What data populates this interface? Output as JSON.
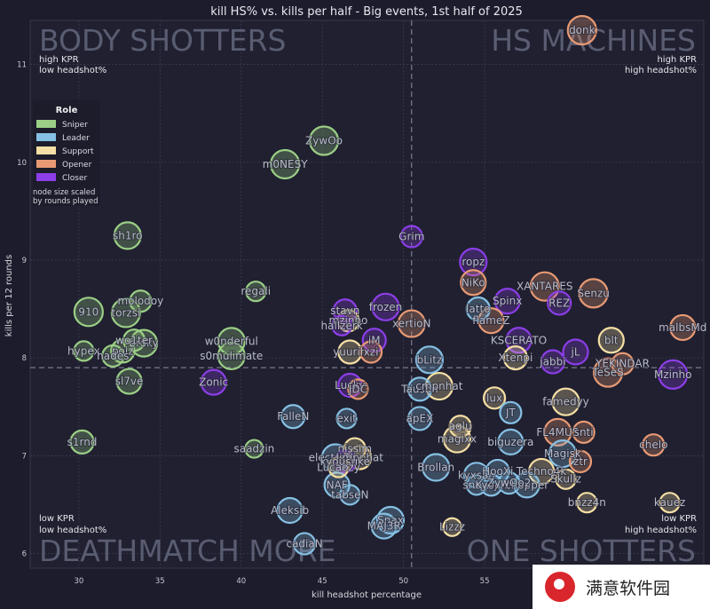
{
  "chart_data": {
    "type": "scatter",
    "title": "kill HS% vs. kills per half - Big events, 1st half of 2025",
    "xlabel": "kill headshot percentage",
    "ylabel": "kills per 12 rounds",
    "xlim": [
      27,
      68.5
    ],
    "ylim": [
      5.85,
      11.45
    ],
    "x_ticks": [
      30,
      35,
      40,
      45,
      50,
      55
    ],
    "y_ticks": [
      6,
      7,
      8,
      9,
      10,
      11
    ],
    "mean_x": 50.5,
    "mean_y": 7.9,
    "grid": true,
    "quadrants": {
      "top_left": {
        "title": "BODY SHOTTERS",
        "line1": "high KPR",
        "line2": "low headshot%"
      },
      "top_right": {
        "title": "HS MACHINES",
        "line1": "high KPR",
        "line2": "high headshot%"
      },
      "bottom_left": {
        "title": "DEATHMATCH MORE",
        "line1": "low KPR",
        "line2": "low headshot%"
      },
      "bottom_right": {
        "title": "ONE SHOTTERS",
        "line1": "low KPR",
        "line2": "high headshot%"
      }
    },
    "legend": {
      "title": "Role",
      "placement": "top-left",
      "note_line1": "node size scaled",
      "note_line2": "by rounds played",
      "roles": [
        {
          "name": "Sniper",
          "color": "#9bcf86"
        },
        {
          "name": "Leader",
          "color": "#86c0e3"
        },
        {
          "name": "Support",
          "color": "#f5dfa4"
        },
        {
          "name": "Opener",
          "color": "#e89a74"
        },
        {
          "name": "Closer",
          "color": "#8c3ee8"
        }
      ]
    },
    "points": [
      {
        "name": "donk",
        "x": 61.0,
        "y": 11.35,
        "role": "Opener",
        "size": 1.1
      },
      {
        "name": "ZywOo",
        "x": 45.1,
        "y": 10.22,
        "role": "Sniper",
        "size": 1.1
      },
      {
        "name": "m0NESY",
        "x": 42.7,
        "y": 9.98,
        "role": "Sniper",
        "size": 1.1
      },
      {
        "name": "sh1ro",
        "x": 33.0,
        "y": 9.25,
        "role": "Sniper",
        "size": 1.0
      },
      {
        "name": "Grim",
        "x": 50.5,
        "y": 9.24,
        "role": "Closer",
        "size": 0.7
      },
      {
        "name": "ropz",
        "x": 54.3,
        "y": 8.98,
        "role": "Closer",
        "size": 1.0
      },
      {
        "name": "NiKo",
        "x": 54.3,
        "y": 8.77,
        "role": "Opener",
        "size": 0.9
      },
      {
        "name": "regali",
        "x": 40.9,
        "y": 8.68,
        "role": "Sniper",
        "size": 0.6
      },
      {
        "name": "XANTARES",
        "x": 58.7,
        "y": 8.73,
        "role": "Opener",
        "size": 1.1
      },
      {
        "name": "Senzu",
        "x": 61.7,
        "y": 8.66,
        "role": "Opener",
        "size": 1.1
      },
      {
        "name": "molodoy",
        "x": 33.8,
        "y": 8.58,
        "role": "Sniper",
        "size": 0.7
      },
      {
        "name": "frozen",
        "x": 48.9,
        "y": 8.52,
        "role": "Closer",
        "size": 1.0
      },
      {
        "name": "910",
        "x": 30.6,
        "y": 8.47,
        "role": "Sniper",
        "size": 1.1
      },
      {
        "name": "torzsi",
        "x": 32.9,
        "y": 8.46,
        "role": "Sniper",
        "size": 1.1
      },
      {
        "name": "stavn",
        "x": 46.4,
        "y": 8.48,
        "role": "Closer",
        "size": 0.8
      },
      {
        "name": "REZ",
        "x": 59.6,
        "y": 8.56,
        "role": "Closer",
        "size": 0.8
      },
      {
        "name": "mzinho",
        "x": 46.6,
        "y": 8.38,
        "role": "Support",
        "size": 0.7
      },
      {
        "name": "xertioN",
        "x": 50.5,
        "y": 8.35,
        "role": "Opener",
        "size": 1.0
      },
      {
        "name": "malbsMd",
        "x": 67.2,
        "y": 8.31,
        "role": "Opener",
        "size": 0.9
      },
      {
        "name": "hallzerk",
        "x": 46.2,
        "y": 8.33,
        "role": "Closer",
        "size": 0.6
      },
      {
        "name": "w0nderful",
        "x": 39.4,
        "y": 8.17,
        "role": "Sniper",
        "size": 1.0
      },
      {
        "name": "iM",
        "x": 48.2,
        "y": 8.18,
        "role": "Closer",
        "size": 0.8
      },
      {
        "name": "blt",
        "x": 62.8,
        "y": 8.18,
        "role": "Support",
        "size": 0.9
      },
      {
        "name": "hypex",
        "x": 30.3,
        "y": 8.07,
        "role": "Sniper",
        "size": 0.6
      },
      {
        "name": "poiz",
        "x": 32.7,
        "y": 8.07,
        "role": "Sniper",
        "size": 0.8
      },
      {
        "name": "broky",
        "x": 34.0,
        "y": 8.15,
        "role": "Sniper",
        "size": 1.0
      },
      {
        "name": "wo1ter",
        "x": 33.4,
        "y": 8.18,
        "role": "Sniper",
        "size": 0.7
      },
      {
        "name": "hades",
        "x": 32.1,
        "y": 8.02,
        "role": "Sniper",
        "size": 0.7
      },
      {
        "name": "s0mulimate",
        "x": 39.4,
        "y": 8.02,
        "role": "Sniper",
        "size": 1.0
      },
      {
        "name": "yuurih",
        "x": 46.7,
        "y": 8.06,
        "role": "Support",
        "size": 0.8
      },
      {
        "name": "xzi",
        "x": 48.0,
        "y": 8.06,
        "role": "Opener",
        "size": 0.7
      },
      {
        "name": "jL",
        "x": 60.6,
        "y": 8.06,
        "role": "Closer",
        "size": 0.9
      },
      {
        "name": "bLitz",
        "x": 51.6,
        "y": 7.98,
        "role": "Leader",
        "size": 1.0
      },
      {
        "name": "YEKINDAR",
        "x": 63.5,
        "y": 7.94,
        "role": "Opener",
        "size": 0.7
      },
      {
        "name": "jabbi",
        "x": 59.2,
        "y": 7.96,
        "role": "Closer",
        "size": 0.8
      },
      {
        "name": "TeSeS",
        "x": 62.6,
        "y": 7.85,
        "role": "Opener",
        "size": 1.1
      },
      {
        "name": "Mzinho",
        "x": 66.6,
        "y": 7.83,
        "role": "Closer",
        "size": 1.1
      },
      {
        "name": "Spinx",
        "x": 56.4,
        "y": 8.58,
        "role": "Closer",
        "size": 0.9
      },
      {
        "name": "latto",
        "x": 54.6,
        "y": 8.5,
        "role": "Leader",
        "size": 0.8
      },
      {
        "name": "flameZ",
        "x": 55.4,
        "y": 8.38,
        "role": "Opener",
        "size": 0.9
      },
      {
        "name": "KSCERATO",
        "x": 57.1,
        "y": 8.18,
        "role": "Closer",
        "size": 0.9
      },
      {
        "name": "Xtenpi",
        "x": 56.9,
        "y": 8.0,
        "role": "Support",
        "size": 0.8
      },
      {
        "name": "Zonic",
        "x": 38.3,
        "y": 7.75,
        "role": "Closer",
        "size": 0.9
      },
      {
        "name": "sl7ve",
        "x": 33.1,
        "y": 7.76,
        "role": "Sniper",
        "size": 0.9
      },
      {
        "name": "Lucky",
        "x": 46.7,
        "y": 7.72,
        "role": "Closer",
        "size": 0.8
      },
      {
        "name": "JDC",
        "x": 47.2,
        "y": 7.68,
        "role": "Opener",
        "size": 0.6
      },
      {
        "name": "Tauson",
        "x": 51.0,
        "y": 7.68,
        "role": "Leader",
        "size": 0.8
      },
      {
        "name": "cmpnhat",
        "x": 52.2,
        "y": 7.71,
        "role": "Support",
        "size": 1.0
      },
      {
        "name": "lux",
        "x": 55.6,
        "y": 7.59,
        "role": "Support",
        "size": 0.7
      },
      {
        "name": "famedyy",
        "x": 60.0,
        "y": 7.55,
        "role": "Support",
        "size": 1.0
      },
      {
        "name": "FalleN",
        "x": 43.2,
        "y": 7.4,
        "role": "Leader",
        "size": 0.8
      },
      {
        "name": "exit",
        "x": 46.5,
        "y": 7.38,
        "role": "Leader",
        "size": 0.6
      },
      {
        "name": "apEX",
        "x": 51.0,
        "y": 7.38,
        "role": "Leader",
        "size": 0.8
      },
      {
        "name": "JT",
        "x": 56.6,
        "y": 7.44,
        "role": "Leader",
        "size": 0.7
      },
      {
        "name": "aglu",
        "x": 53.5,
        "y": 7.3,
        "role": "Support",
        "size": 0.7
      },
      {
        "name": "FL4MUS",
        "x": 59.5,
        "y": 7.24,
        "role": "Opener",
        "size": 1.0
      },
      {
        "name": "snti",
        "x": 61.1,
        "y": 7.24,
        "role": "Opener",
        "size": 0.7
      },
      {
        "name": "magixx",
        "x": 53.3,
        "y": 7.17,
        "role": "Support",
        "size": 1.0
      },
      {
        "name": "biguzera",
        "x": 56.6,
        "y": 7.14,
        "role": "Leader",
        "size": 0.9
      },
      {
        "name": "s1rnd",
        "x": 30.2,
        "y": 7.14,
        "role": "Sniper",
        "size": 0.8
      },
      {
        "name": "chelo",
        "x": 65.4,
        "y": 7.11,
        "role": "Opener",
        "size": 0.7
      },
      {
        "name": "saadzin",
        "x": 40.8,
        "y": 7.07,
        "role": "Sniper",
        "size": 0.5
      },
      {
        "name": "nissim",
        "x": 47.0,
        "y": 7.07,
        "role": "Support",
        "size": 0.7
      },
      {
        "name": "Magisk",
        "x": 59.8,
        "y": 7.02,
        "role": "Leader",
        "size": 1.0
      },
      {
        "name": "electroNic",
        "x": 45.8,
        "y": 6.98,
        "role": "Leader",
        "size": 1.0
      },
      {
        "name": "Jimpphat",
        "x": 47.3,
        "y": 6.98,
        "role": "Support",
        "size": 0.8
      },
      {
        "name": "kyousuke",
        "x": 46.4,
        "y": 6.94,
        "role": "Closer",
        "size": 0.7
      },
      {
        "name": "ztr",
        "x": 60.9,
        "y": 6.94,
        "role": "Opener",
        "size": 0.7
      },
      {
        "name": "Lucaozy",
        "x": 46.0,
        "y": 6.88,
        "role": "Support",
        "size": 0.6
      },
      {
        "name": "Brollan",
        "x": 52.0,
        "y": 6.88,
        "role": "Leader",
        "size": 1.0
      },
      {
        "name": "Techno4k",
        "x": 58.5,
        "y": 6.84,
        "role": "Support",
        "size": 0.9
      },
      {
        "name": "kyxsan",
        "x": 54.5,
        "y": 6.8,
        "role": "Leader",
        "size": 0.9
      },
      {
        "name": "HooXi",
        "x": 55.8,
        "y": 6.84,
        "role": "Leader",
        "size": 0.8
      },
      {
        "name": "Skullz",
        "x": 60.0,
        "y": 6.76,
        "role": "Support",
        "size": 0.6
      },
      {
        "name": "NAF",
        "x": 45.9,
        "y": 6.7,
        "role": "Leader",
        "size": 0.9
      },
      {
        "name": "snow",
        "x": 54.5,
        "y": 6.7,
        "role": "Leader",
        "size": 0.6
      },
      {
        "name": "Kyojin",
        "x": 55.4,
        "y": 6.7,
        "role": "Leader",
        "size": 0.7
      },
      {
        "name": "chopper",
        "x": 57.6,
        "y": 6.7,
        "role": "Leader",
        "size": 0.9
      },
      {
        "name": "ZywOo2",
        "x": 56.5,
        "y": 6.72,
        "role": "Leader",
        "size": 0.7
      },
      {
        "name": "tabseN",
        "x": 46.7,
        "y": 6.6,
        "role": "Leader",
        "size": 0.6
      },
      {
        "name": "bnzz4n",
        "x": 61.3,
        "y": 6.52,
        "role": "Support",
        "size": 0.6
      },
      {
        "name": "kauez",
        "x": 66.4,
        "y": 6.52,
        "role": "Support",
        "size": 0.6
      },
      {
        "name": "Aleksib",
        "x": 43.0,
        "y": 6.44,
        "role": "Leader",
        "size": 0.9
      },
      {
        "name": "Snax",
        "x": 49.2,
        "y": 6.34,
        "role": "Leader",
        "size": 1.0
      },
      {
        "name": "MAJ3R",
        "x": 48.8,
        "y": 6.28,
        "role": "Leader",
        "size": 0.9
      },
      {
        "name": "Lizzz",
        "x": 53.0,
        "y": 6.27,
        "role": "Support",
        "size": 0.5
      },
      {
        "name": "cadiaN",
        "x": 43.9,
        "y": 6.1,
        "role": "Leader",
        "size": 0.7
      }
    ]
  }
}
